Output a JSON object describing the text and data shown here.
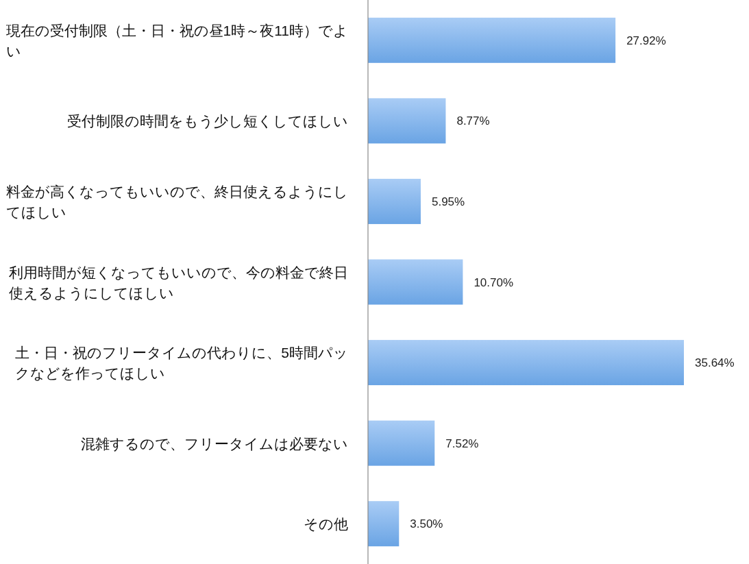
{
  "chart_data": {
    "type": "bar",
    "orientation": "horizontal",
    "color": "#6aa4e4",
    "categories": [
      "現在の受付制限（土・日・祝の昼1時～夜11時）でよい",
      "受付制限の時間をもう少し短くしてほしい",
      "料金が高くなってもいいので、終日使えるようにしてほしい",
      "利用時間が短くなってもいいので、今の料金で終日使えるようにしてほしい",
      "土・日・祝のフリータイムの代わりに、5時間パックなどを作ってほしい",
      "混雑するので、フリータイムは必要ない",
      "その他"
    ],
    "values": [
      27.92,
      8.77,
      5.95,
      10.7,
      35.64,
      7.52,
      3.5
    ],
    "value_labels": [
      "27.92%",
      "8.77%",
      "5.95%",
      "10.70%",
      "35.64%",
      "7.52%",
      "3.50%"
    ]
  }
}
